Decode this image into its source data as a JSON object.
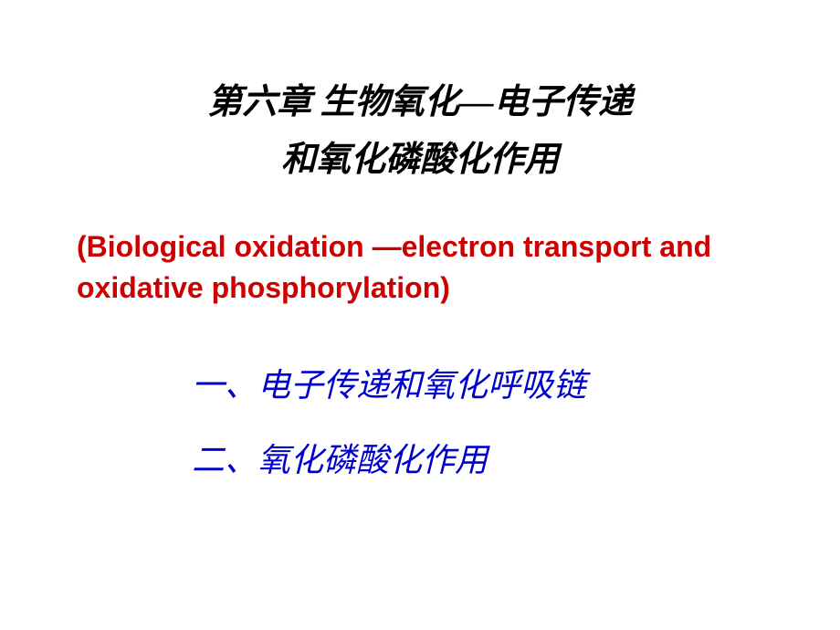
{
  "slide": {
    "title_line1": "第六章  生物氧化—电子传递",
    "title_line2": "和氧化磷酸化作用",
    "subtitle_english": "(Biological oxidation —electron transport and oxidative phosphorylation)",
    "section1": "一、电子传递和氧化呼吸链",
    "section2": "二、氧化磷酸化作用"
  },
  "styling": {
    "background_color": "#ffffff",
    "title_color": "#000000",
    "title_fontsize": 38,
    "title_font_family": "KaiTi",
    "subtitle_color": "#cc0000",
    "subtitle_fontsize": 32,
    "subtitle_font_family": "Comic Sans MS",
    "section_color": "#0000cc",
    "section_fontsize": 36,
    "section_font_family": "KaiTi",
    "slide_width": 920,
    "slide_height": 690
  }
}
